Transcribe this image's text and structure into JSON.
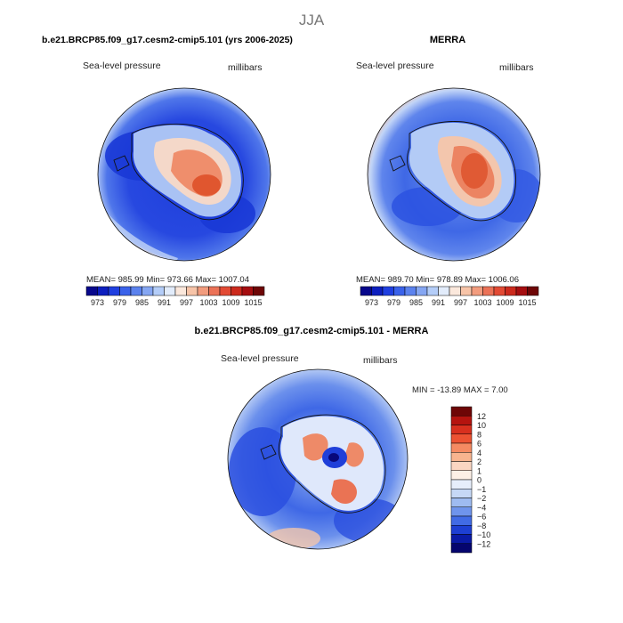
{
  "page_title": "JJA",
  "chart_data": [
    {
      "type": "heatmap",
      "title": "b.e21.BRCP85.f09_g17.cesm2-cmip5.101 (yrs 2006-2025)",
      "left_label": "Sea-level pressure",
      "right_label": "millibars",
      "projection": "south-polar-stereographic",
      "stats_line": "MEAN= 985.99   Min= 973.66   Max= 1007.04",
      "stats": {
        "mean": 985.99,
        "min": 973.66,
        "max": 1007.04
      },
      "colorbar": {
        "orientation": "horizontal",
        "levels": [
          970,
          973,
          976,
          979,
          982,
          985,
          988,
          991,
          994,
          997,
          1000,
          1003,
          1006,
          1009,
          1012,
          1015
        ],
        "tick_labels": [
          "973",
          "979",
          "985",
          "991",
          "997",
          "1003",
          "1009",
          "1015"
        ],
        "colors": [
          "#08088c",
          "#0d1fbf",
          "#1f3fe0",
          "#3a62ea",
          "#5b82ee",
          "#85a6f2",
          "#b4cdf8",
          "#e2ecfb",
          "#fbe8dc",
          "#f7c4a8",
          "#f29c7e",
          "#eb7257",
          "#e24a34",
          "#cc2a1d",
          "#a50e10",
          "#6e0606"
        ]
      }
    },
    {
      "type": "heatmap",
      "title": "MERRA",
      "left_label": "Sea-level pressure",
      "right_label": "millibars",
      "projection": "south-polar-stereographic",
      "stats_line": "MEAN= 989.70   Min= 978.89   Max= 1006.06",
      "stats": {
        "mean": 989.7,
        "min": 978.89,
        "max": 1006.06
      },
      "colorbar": {
        "orientation": "horizontal",
        "levels": [
          970,
          973,
          976,
          979,
          982,
          985,
          988,
          991,
          994,
          997,
          1000,
          1003,
          1006,
          1009,
          1012,
          1015
        ],
        "tick_labels": [
          "973",
          "979",
          "985",
          "991",
          "997",
          "1003",
          "1009",
          "1015"
        ],
        "colors": [
          "#08088c",
          "#0d1fbf",
          "#1f3fe0",
          "#3a62ea",
          "#5b82ee",
          "#85a6f2",
          "#b4cdf8",
          "#e2ecfb",
          "#fbe8dc",
          "#f7c4a8",
          "#f29c7e",
          "#eb7257",
          "#e24a34",
          "#cc2a1d",
          "#a50e10",
          "#6e0606"
        ]
      }
    },
    {
      "type": "heatmap",
      "title": "b.e21.BRCP85.f09_g17.cesm2-cmip5.101 - MERRA",
      "left_label": "Sea-level pressure",
      "right_label": "millibars",
      "projection": "south-polar-stereographic",
      "stats_line": "MIN = -13.89  MAX =   7.00",
      "stats": {
        "min": -13.89,
        "max": 7.0
      },
      "colorbar": {
        "orientation": "vertical",
        "levels": [
          -12,
          -10,
          -8,
          -6,
          -4,
          -2,
          -1,
          0,
          1,
          2,
          4,
          6,
          8,
          10,
          12
        ],
        "tick_labels": [
          "12",
          "10",
          "8",
          "6",
          "4",
          "2",
          "1",
          "0",
          "−1",
          "−2",
          "−4",
          "−6",
          "−8",
          "−10",
          "−12"
        ],
        "colors": [
          "#6e0606",
          "#b5140f",
          "#d8301e",
          "#ec5232",
          "#f58a62",
          "#f8b48f",
          "#fbd6c2",
          "#fdf0e6",
          "#e6eefb",
          "#c6d8f6",
          "#9ebbf1",
          "#6f94ec",
          "#416be5",
          "#1d3fd3",
          "#0a1aa6",
          "#05056e"
        ]
      }
    }
  ]
}
